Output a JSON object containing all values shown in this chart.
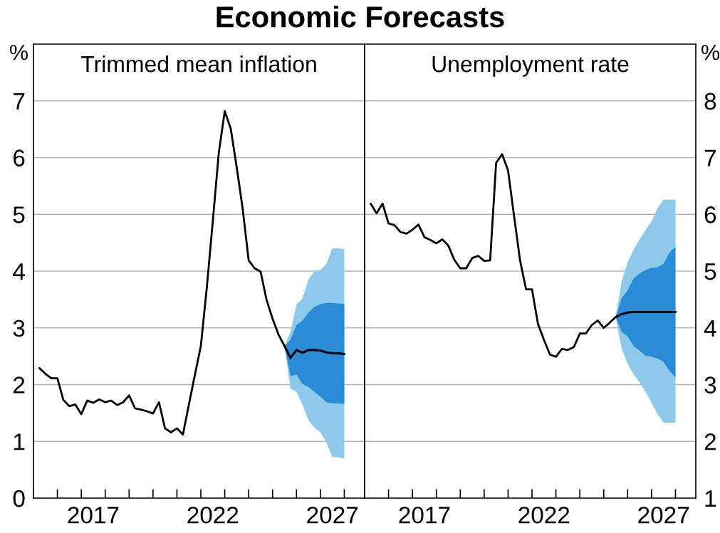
{
  "chart_data": [
    {
      "type": "line",
      "title": "Trimmed mean inflation",
      "ylabel": "%",
      "annotations": [
        "Economic Forecasts"
      ],
      "grid": "y",
      "xlim": [
        2015.0,
        2028.85
      ],
      "xticks": [
        {
          "value": 2016,
          "label": null
        },
        {
          "value": 2017,
          "label": null
        },
        {
          "value": 2018,
          "label": null
        },
        {
          "value": 2019,
          "label": null
        },
        {
          "value": 2020,
          "label": null
        },
        {
          "value": 2021,
          "label": null
        },
        {
          "value": 2022,
          "label": null
        },
        {
          "value": 2023,
          "label": null
        },
        {
          "value": 2024,
          "label": null
        },
        {
          "value": 2025,
          "label": null
        },
        {
          "value": 2026,
          "label": null
        },
        {
          "value": 2027,
          "label": null
        },
        {
          "value": 2028,
          "label": null
        },
        {
          "value": 2017.5,
          "label": "2017"
        },
        {
          "value": 2022.5,
          "label": "2022"
        },
        {
          "value": 2027.5,
          "label": "2027"
        }
      ],
      "ylim": [
        0,
        8
      ],
      "yticks": [
        0,
        1,
        2,
        3,
        4,
        5,
        6,
        7
      ],
      "series": [
        {
          "color": "#000000",
          "colors": [
            null,
            null,
            null,
            null,
            null,
            null,
            null,
            null,
            null,
            null,
            null,
            null,
            null,
            null,
            null,
            null,
            null,
            null,
            null,
            null,
            null,
            null,
            null,
            null,
            null,
            null,
            null,
            null,
            null,
            null,
            null,
            null,
            null,
            null,
            null,
            null,
            null,
            null,
            null,
            null,
            null,
            "#8dc9ea",
            "#8dc9ea",
            "#8dc9ea",
            "#8dc9ea",
            "#8dc9ea",
            "#8dc9ea",
            "#8dc9ea",
            "#8dc9ea",
            "#8dc9ea",
            "#8dc9ea",
            "#8dc9ea"
          ],
          "x": [
            2015.25,
            2015.5,
            2015.75,
            2016.0,
            2016.25,
            2016.5,
            2016.75,
            2017.0,
            2017.25,
            2017.5,
            2017.75,
            2018.0,
            2018.25,
            2018.5,
            2018.75,
            2019.0,
            2019.25,
            2019.5,
            2019.75,
            2020.0,
            2020.25,
            2020.5,
            2020.75,
            2021.0,
            2021.25,
            2021.5,
            2021.75,
            2022.0,
            2022.25,
            2022.5,
            2022.75,
            2023.0,
            2023.25,
            2023.5,
            2023.75,
            2024.0,
            2024.25,
            2024.5,
            2024.75,
            2025.0,
            2025.25,
            2025.5,
            2025.75,
            2026.0,
            2026.25,
            2026.5,
            2026.75,
            2027.0,
            2027.25,
            2027.5,
            2027.75,
            2028.0
          ],
          "values": [
            2.29,
            2.19,
            2.11,
            2.11,
            1.73,
            1.62,
            1.65,
            1.48,
            1.72,
            1.68,
            1.74,
            1.69,
            1.72,
            1.64,
            1.69,
            1.81,
            1.58,
            1.56,
            1.53,
            1.49,
            1.69,
            1.23,
            1.16,
            1.23,
            1.12,
            1.65,
            2.17,
            2.68,
            3.71,
            4.88,
            6.08,
            6.82,
            6.51,
            5.83,
            5.1,
            4.19,
            4.05,
            3.99,
            3.49,
            3.16,
            2.88,
            2.68,
            2.47,
            2.61,
            2.56,
            2.61,
            2.61,
            2.6,
            2.57,
            2.55,
            2.55,
            2.54
          ],
          "lower": [
            null,
            null,
            null,
            null,
            null,
            null,
            null,
            null,
            null,
            null,
            null,
            null,
            null,
            null,
            null,
            null,
            null,
            null,
            null,
            null,
            null,
            null,
            null,
            null,
            null,
            null,
            null,
            null,
            null,
            null,
            null,
            null,
            null,
            null,
            null,
            null,
            null,
            null,
            null,
            null,
            null,
            2.68,
            1.93,
            1.87,
            1.65,
            1.37,
            1.24,
            1.16,
            0.98,
            0.72,
            0.72,
            0.7
          ],
          "upper": [
            null,
            null,
            null,
            null,
            null,
            null,
            null,
            null,
            null,
            null,
            null,
            null,
            null,
            null,
            null,
            null,
            null,
            null,
            null,
            null,
            null,
            null,
            null,
            null,
            null,
            null,
            null,
            null,
            null,
            null,
            null,
            null,
            null,
            null,
            null,
            null,
            null,
            null,
            null,
            null,
            null,
            2.68,
            2.93,
            3.41,
            3.52,
            3.85,
            4.0,
            4.02,
            4.13,
            4.4,
            4.4,
            4.39
          ]
        },
        {
          "color": "#000000",
          "colors": [
            "#2a8cd7",
            "#2a8cd7",
            "#2a8cd7",
            "#2a8cd7",
            "#2a8cd7",
            "#2a8cd7",
            "#2a8cd7",
            "#2a8cd7",
            "#2a8cd7",
            "#2a8cd7",
            "#2a8cd7"
          ],
          "x": [
            2025.5,
            2025.75,
            2026.0,
            2026.25,
            2026.5,
            2026.75,
            2027.0,
            2027.25,
            2027.5,
            2027.75,
            2028.0
          ],
          "values": [
            2.68,
            2.47,
            2.61,
            2.56,
            2.61,
            2.61,
            2.6,
            2.57,
            2.55,
            2.55,
            2.54
          ],
          "lower": [
            2.68,
            2.15,
            2.18,
            2.01,
            1.96,
            1.87,
            1.79,
            1.69,
            1.67,
            1.67,
            1.66
          ],
          "upper": [
            2.68,
            2.79,
            3.05,
            3.13,
            3.27,
            3.37,
            3.42,
            3.44,
            3.44,
            3.43,
            3.42
          ]
        }
      ]
    },
    {
      "type": "line",
      "title": "Unemployment rate",
      "y2label": "%",
      "grid": "y",
      "xlim": [
        2015.0,
        2028.85
      ],
      "xticks": [
        {
          "value": 2016,
          "label": null
        },
        {
          "value": 2017,
          "label": null
        },
        {
          "value": 2018,
          "label": null
        },
        {
          "value": 2019,
          "label": null
        },
        {
          "value": 2020,
          "label": null
        },
        {
          "value": 2021,
          "label": null
        },
        {
          "value": 2022,
          "label": null
        },
        {
          "value": 2023,
          "label": null
        },
        {
          "value": 2024,
          "label": null
        },
        {
          "value": 2025,
          "label": null
        },
        {
          "value": 2026,
          "label": null
        },
        {
          "value": 2027,
          "label": null
        },
        {
          "value": 2028,
          "label": null
        },
        {
          "value": 2017.5,
          "label": "2017"
        },
        {
          "value": 2022.5,
          "label": "2022"
        },
        {
          "value": 2027.5,
          "label": "2027"
        }
      ],
      "y2lim": [
        1,
        9
      ],
      "y2ticks": [
        1,
        2,
        3,
        4,
        5,
        6,
        7,
        8
      ],
      "series": [
        {
          "axis": "y2",
          "color": "#000000",
          "colors": [
            null,
            null,
            null,
            null,
            null,
            null,
            null,
            null,
            null,
            null,
            null,
            null,
            null,
            null,
            null,
            null,
            null,
            null,
            null,
            null,
            null,
            null,
            null,
            null,
            null,
            null,
            null,
            null,
            null,
            null,
            null,
            null,
            null,
            null,
            null,
            null,
            null,
            null,
            null,
            null,
            null,
            "#8dc9ea",
            "#8dc9ea",
            "#8dc9ea",
            "#8dc9ea",
            "#8dc9ea",
            "#8dc9ea",
            "#8dc9ea",
            "#8dc9ea",
            "#8dc9ea",
            "#8dc9ea",
            "#8dc9ea"
          ],
          "x": [
            2015.25,
            2015.5,
            2015.75,
            2016.0,
            2016.25,
            2016.5,
            2016.75,
            2017.0,
            2017.25,
            2017.5,
            2017.75,
            2018.0,
            2018.25,
            2018.5,
            2018.75,
            2019.0,
            2019.25,
            2019.5,
            2019.75,
            2020.0,
            2020.25,
            2020.5,
            2020.75,
            2021.0,
            2021.25,
            2021.5,
            2021.75,
            2022.0,
            2022.25,
            2022.5,
            2022.75,
            2023.0,
            2023.25,
            2023.5,
            2023.75,
            2024.0,
            2024.25,
            2024.5,
            2024.75,
            2025.0,
            2025.25,
            2025.5,
            2025.75,
            2026.0,
            2026.25,
            2026.5,
            2026.75,
            2027.0,
            2027.25,
            2027.5,
            2027.75,
            2028.0
          ],
          "values": [
            6.19,
            6.02,
            6.19,
            5.84,
            5.81,
            5.69,
            5.66,
            5.73,
            5.82,
            5.6,
            5.55,
            5.49,
            5.56,
            5.45,
            5.2,
            5.05,
            5.05,
            5.23,
            5.27,
            5.18,
            5.19,
            6.91,
            7.06,
            6.77,
            5.97,
            5.19,
            4.68,
            4.68,
            4.07,
            3.79,
            3.53,
            3.49,
            3.63,
            3.61,
            3.66,
            3.9,
            3.9,
            4.05,
            4.13,
            4.0,
            4.09,
            4.19,
            4.24,
            4.27,
            4.28,
            4.28,
            4.28,
            4.28,
            4.28,
            4.28,
            4.28,
            4.28
          ],
          "lower": [
            null,
            null,
            null,
            null,
            null,
            null,
            null,
            null,
            null,
            null,
            null,
            null,
            null,
            null,
            null,
            null,
            null,
            null,
            null,
            null,
            null,
            null,
            null,
            null,
            null,
            null,
            null,
            null,
            null,
            null,
            null,
            null,
            null,
            null,
            null,
            null,
            null,
            null,
            null,
            null,
            null,
            4.19,
            3.63,
            3.37,
            3.18,
            3.04,
            2.87,
            2.68,
            2.48,
            2.33,
            2.33,
            2.33
          ],
          "upper": [
            null,
            null,
            null,
            null,
            null,
            null,
            null,
            null,
            null,
            null,
            null,
            null,
            null,
            null,
            null,
            null,
            null,
            null,
            null,
            null,
            null,
            null,
            null,
            null,
            null,
            null,
            null,
            null,
            null,
            null,
            null,
            null,
            null,
            null,
            null,
            null,
            null,
            null,
            null,
            null,
            null,
            4.19,
            4.82,
            5.16,
            5.38,
            5.56,
            5.72,
            5.88,
            6.11,
            6.26,
            6.26,
            6.26
          ]
        },
        {
          "axis": "y2",
          "color": "#000000",
          "colors": [
            "#2a8cd7",
            "#2a8cd7",
            "#2a8cd7",
            "#2a8cd7",
            "#2a8cd7",
            "#2a8cd7",
            "#2a8cd7",
            "#2a8cd7",
            "#2a8cd7",
            "#2a8cd7",
            "#2a8cd7"
          ],
          "x": [
            2025.5,
            2025.75,
            2026.0,
            2026.25,
            2026.5,
            2026.75,
            2027.0,
            2027.25,
            2027.5,
            2027.75,
            2028.0
          ],
          "values": [
            4.19,
            4.24,
            4.27,
            4.28,
            4.28,
            4.28,
            4.28,
            4.28,
            4.28,
            4.28,
            4.28
          ],
          "lower": [
            4.19,
            3.93,
            3.85,
            3.68,
            3.6,
            3.51,
            3.49,
            3.46,
            3.4,
            3.24,
            3.13
          ],
          "upper": [
            4.19,
            4.52,
            4.66,
            4.87,
            4.96,
            5.02,
            5.06,
            5.07,
            5.13,
            5.33,
            5.43
          ]
        }
      ]
    }
  ]
}
